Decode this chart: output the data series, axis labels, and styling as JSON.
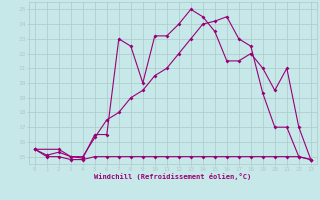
{
  "xlabel": "Windchill (Refroidissement éolien,°C)",
  "xlim": [
    -0.5,
    23.5
  ],
  "ylim": [
    14.5,
    25.5
  ],
  "xticks": [
    0,
    1,
    2,
    3,
    4,
    5,
    6,
    7,
    8,
    9,
    10,
    11,
    12,
    13,
    14,
    15,
    16,
    17,
    18,
    19,
    20,
    21,
    22,
    23
  ],
  "yticks": [
    15,
    16,
    17,
    18,
    19,
    20,
    21,
    22,
    23,
    24,
    25
  ],
  "bg_color": "#c6e8e8",
  "grid_color": "#b0c8c8",
  "line_color": "#990077",
  "line1_x": [
    0,
    1,
    2,
    3,
    4,
    5,
    6,
    7,
    8,
    9,
    10,
    11,
    12,
    13,
    14,
    15,
    16,
    17,
    18,
    19,
    20,
    21,
    22,
    23
  ],
  "line1_y": [
    15.5,
    15.0,
    15.0,
    14.8,
    14.8,
    15.0,
    15.0,
    15.0,
    15.0,
    15.0,
    15.0,
    15.0,
    15.0,
    15.0,
    15.0,
    15.0,
    15.0,
    15.0,
    15.0,
    15.0,
    15.0,
    15.0,
    15.0,
    14.8
  ],
  "line2_x": [
    0,
    1,
    2,
    3,
    4,
    5,
    6,
    7,
    8,
    9,
    10,
    11,
    12,
    13,
    14,
    15,
    16,
    17,
    18,
    19,
    20,
    21,
    22,
    23
  ],
  "line2_y": [
    15.5,
    15.1,
    15.3,
    15.0,
    15.0,
    16.3,
    17.5,
    18.0,
    19.0,
    19.5,
    20.5,
    21.0,
    22.0,
    23.0,
    24.0,
    24.2,
    24.5,
    23.0,
    22.5,
    19.3,
    17.0,
    17.0,
    15.0,
    14.8
  ],
  "line3_x": [
    0,
    2,
    3,
    4,
    5,
    6,
    7,
    8,
    9,
    10,
    11,
    12,
    13,
    14,
    15,
    16,
    17,
    18,
    19,
    20,
    21,
    22,
    23
  ],
  "line3_y": [
    15.5,
    15.5,
    15.0,
    14.9,
    16.5,
    16.5,
    23.0,
    22.5,
    20.0,
    23.2,
    23.2,
    24.0,
    25.0,
    24.5,
    23.5,
    21.5,
    21.5,
    22.0,
    21.0,
    19.5,
    21.0,
    17.0,
    14.8
  ],
  "marker": "D",
  "markersize": 2.0,
  "linewidth": 0.8
}
